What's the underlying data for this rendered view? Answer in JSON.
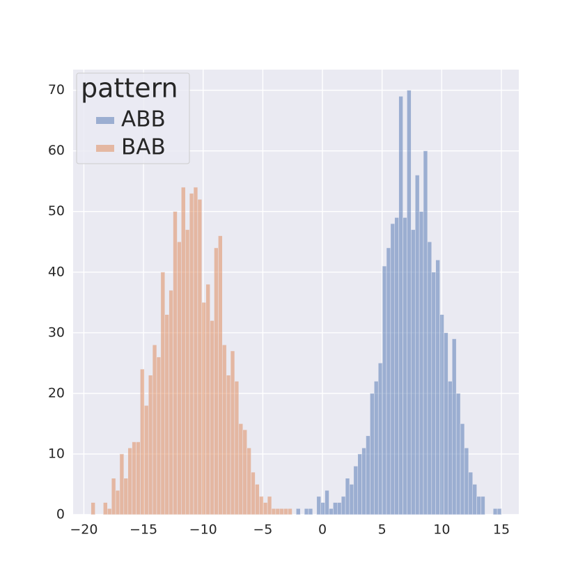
{
  "chart_data": {
    "type": "histogram",
    "legend_title": "pattern",
    "legend_position": "upper left",
    "grid": true,
    "xlim": [
      -20.9,
      16.46
    ],
    "ylim": [
      0,
      73.4
    ],
    "xticks": [
      {
        "value": -20,
        "label": "−20"
      },
      {
        "value": -15,
        "label": "−15"
      },
      {
        "value": -10,
        "label": "−10"
      },
      {
        "value": -5,
        "label": "−5"
      },
      0,
      5,
      10,
      15
    ],
    "yticks": [
      0,
      10,
      20,
      30,
      40,
      50,
      60,
      70
    ],
    "bins": [
      -19.4,
      -19.056,
      -18.712,
      -18.368,
      -18.024,
      -17.68,
      -17.336,
      -16.992,
      -16.648,
      -16.304,
      -15.96,
      -15.616,
      -15.272,
      -14.928,
      -14.584,
      -14.24,
      -13.896,
      -13.552,
      -13.208,
      -12.864,
      -12.52,
      -12.176,
      -11.832,
      -11.488,
      -11.144,
      -10.8,
      -10.456,
      -10.112,
      -9.768,
      -9.424,
      -9.08,
      -8.736,
      -8.392,
      -8.048,
      -7.704,
      -7.36,
      -7.016,
      -6.672,
      -6.328,
      -5.984,
      -5.64,
      -5.296,
      -4.952,
      -4.608,
      -4.264,
      -3.92,
      -3.576,
      -3.232,
      -2.888,
      -2.544,
      -2.2,
      -1.856,
      -1.512,
      -1.168,
      -0.824,
      -0.48,
      -0.136,
      0.208,
      0.552,
      0.896,
      1.24,
      1.584,
      1.928,
      2.272,
      2.616,
      2.96,
      3.304,
      3.648,
      3.992,
      4.336,
      4.68,
      5.024,
      5.368,
      5.712,
      6.056,
      6.4,
      6.744,
      7.088,
      7.432,
      7.776,
      8.12,
      8.464,
      8.808,
      9.152,
      9.496,
      9.84,
      10.184,
      10.528,
      10.872,
      11.216,
      11.56,
      11.904,
      12.248,
      12.592,
      12.936,
      13.28,
      13.624,
      13.968,
      14.312,
      14.656,
      15.0
    ],
    "series": [
      {
        "name": "ABB",
        "color": "#4c72b0",
        "values": [
          0,
          0,
          0,
          0,
          0,
          0,
          0,
          0,
          0,
          0,
          0,
          0,
          0,
          0,
          0,
          0,
          0,
          0,
          0,
          0,
          0,
          0,
          0,
          0,
          0,
          0,
          0,
          0,
          0,
          0,
          0,
          0,
          0,
          0,
          0,
          0,
          0,
          0,
          0,
          0,
          0,
          0,
          0,
          0,
          0,
          0,
          0,
          0,
          0,
          0,
          1,
          0,
          1,
          1,
          0,
          3,
          2,
          4,
          1,
          2,
          2,
          3,
          6,
          5,
          8,
          10,
          11,
          13,
          20,
          22,
          25,
          41,
          44,
          48,
          49,
          69,
          49,
          70,
          47,
          56,
          50,
          60,
          45,
          40,
          42,
          33,
          30,
          22,
          29,
          20,
          15,
          11,
          7,
          5,
          3,
          3,
          0,
          0,
          1,
          1
        ]
      },
      {
        "name": "BAB",
        "color": "#dd8452",
        "values": [
          2,
          0,
          0,
          2,
          1,
          6,
          4,
          10,
          6,
          11,
          12,
          12,
          24,
          18,
          23,
          28,
          26,
          40,
          33,
          37,
          50,
          45,
          54,
          47,
          53,
          54,
          52,
          35,
          38,
          32,
          44,
          46,
          28,
          23,
          27,
          22,
          15,
          14,
          11,
          7,
          5,
          3,
          2,
          3,
          1,
          1,
          1,
          1,
          1,
          0,
          0,
          0,
          0,
          0,
          0,
          0,
          0,
          0,
          0,
          0,
          0,
          0,
          0,
          0,
          0,
          0,
          0,
          0,
          0,
          0,
          0,
          0,
          0,
          0,
          0,
          0,
          0,
          0,
          0,
          0,
          0,
          0,
          0,
          0,
          0,
          0,
          0,
          0,
          0,
          0,
          0,
          0,
          0,
          0,
          0,
          0,
          0,
          0,
          0,
          0
        ]
      }
    ]
  }
}
